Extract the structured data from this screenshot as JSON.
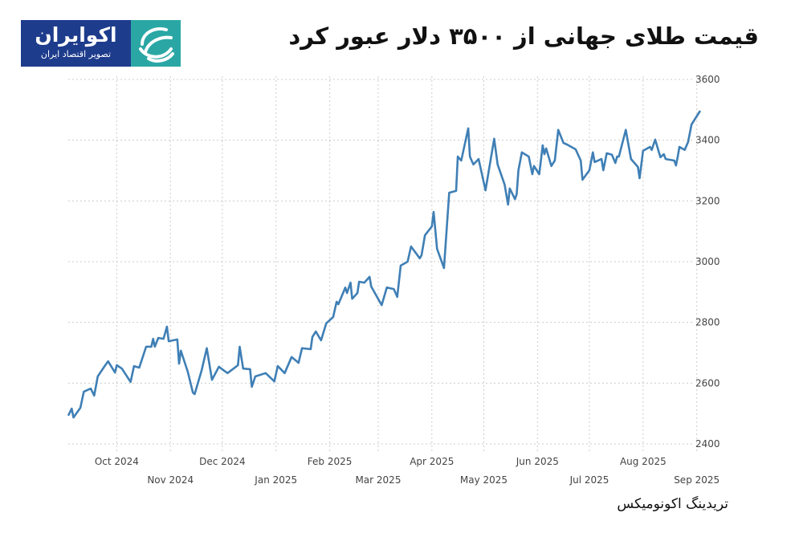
{
  "title": "قیمت طلای جهانی از ۳۵۰۰ دلار عبور کرد",
  "logo": {
    "name": "اکوایران",
    "subtitle": "تصویر اقتصاد ایران"
  },
  "source": "تریدینگ اکونومیکس",
  "colors": {
    "line": "#3f7fb5",
    "grid": "#cccccc",
    "logo_blue": "#1e3c8c",
    "logo_teal": "#2aa7a5"
  },
  "chart_data": {
    "type": "line",
    "title": "",
    "xlabel": "",
    "ylabel": "",
    "ylim": [
      2400,
      3600
    ],
    "xlim": [
      "2024-09-03",
      "2025-09-03"
    ],
    "grid": true,
    "y_axis_position": "right",
    "y_ticks": [
      "3600",
      "3400",
      "3200",
      "3000",
      "2800",
      "2600",
      "2400"
    ],
    "x_ticks": [
      {
        "label": "Oct 2024",
        "date": "2024-10-01"
      },
      {
        "label": "Nov 2024",
        "date": "2024-11-01"
      },
      {
        "label": "Dec 2024",
        "date": "2024-12-01"
      },
      {
        "label": "Jan 2025",
        "date": "2025-01-01"
      },
      {
        "label": "Feb 2025",
        "date": "2025-02-01"
      },
      {
        "label": "Mar 2025",
        "date": "2025-03-01"
      },
      {
        "label": "Apr 2025",
        "date": "2025-04-01"
      },
      {
        "label": "May 2025",
        "date": "2025-05-01"
      },
      {
        "label": "Jun 2025",
        "date": "2025-06-01"
      },
      {
        "label": "Jul 2025",
        "date": "2025-07-01"
      },
      {
        "label": "Aug 2025",
        "date": "2025-08-01"
      },
      {
        "label": "Sep 2025",
        "date": "2025-09-01"
      }
    ],
    "series": [
      {
        "x": [
          "2024-09-03",
          "2024-09-05",
          "2024-09-06",
          "2024-09-10",
          "2024-09-12",
          "2024-09-16",
          "2024-09-18",
          "2024-09-20",
          "2024-09-24",
          "2024-09-26",
          "2024-09-30",
          "2024-10-01",
          "2024-10-04",
          "2024-10-09",
          "2024-10-11",
          "2024-10-14",
          "2024-10-18",
          "2024-10-21",
          "2024-10-22",
          "2024-10-23",
          "2024-10-25",
          "2024-10-28",
          "2024-10-30",
          "2024-10-31",
          "2024-11-05",
          "2024-11-06",
          "2024-11-07",
          "2024-11-11",
          "2024-11-14",
          "2024-11-15",
          "2024-11-19",
          "2024-11-22",
          "2024-11-25",
          "2024-11-29",
          "2024-12-02",
          "2024-12-04",
          "2024-12-10",
          "2024-12-11",
          "2024-12-13",
          "2024-12-17",
          "2024-12-18",
          "2024-12-20",
          "2024-12-26",
          "2024-12-31",
          "2025-01-02",
          "2025-01-06",
          "2025-01-10",
          "2025-01-14",
          "2025-01-16",
          "2025-01-21",
          "2025-01-22",
          "2025-01-24",
          "2025-01-27",
          "2025-01-30",
          "2025-02-03",
          "2025-02-05",
          "2025-02-06",
          "2025-02-10",
          "2025-02-11",
          "2025-02-13",
          "2025-02-14",
          "2025-02-17",
          "2025-02-18",
          "2025-02-21",
          "2025-02-24",
          "2025-02-25",
          "2025-03-03",
          "2025-03-06",
          "2025-03-10",
          "2025-03-12",
          "2025-03-14",
          "2025-03-18",
          "2025-03-20",
          "2025-03-24",
          "2025-03-25",
          "2025-03-26",
          "2025-03-28",
          "2025-04-01",
          "2025-04-02",
          "2025-04-04",
          "2025-04-08",
          "2025-04-11",
          "2025-04-15",
          "2025-04-16",
          "2025-04-18",
          "2025-04-22",
          "2025-04-23",
          "2025-04-25",
          "2025-04-28",
          "2025-05-02",
          "2025-05-07",
          "2025-05-09",
          "2025-05-13",
          "2025-05-15",
          "2025-05-16",
          "2025-05-19",
          "2025-05-20",
          "2025-05-21",
          "2025-05-23",
          "2025-05-27",
          "2025-05-29",
          "2025-05-30",
          "2025-06-02",
          "2025-06-03",
          "2025-06-04",
          "2025-06-05",
          "2025-06-06",
          "2025-06-09",
          "2025-06-11",
          "2025-06-13",
          "2025-06-16",
          "2025-06-18",
          "2025-06-23",
          "2025-06-26",
          "2025-06-27",
          "2025-07-01",
          "2025-07-03",
          "2025-07-04",
          "2025-07-08",
          "2025-07-09",
          "2025-07-11",
          "2025-07-14",
          "2025-07-16",
          "2025-07-17",
          "2025-07-18",
          "2025-07-22",
          "2025-07-25",
          "2025-07-29",
          "2025-07-30",
          "2025-08-01",
          "2025-08-05",
          "2025-08-06",
          "2025-08-08",
          "2025-08-11",
          "2025-08-13",
          "2025-08-14",
          "2025-08-19",
          "2025-08-20",
          "2025-08-21",
          "2025-08-22",
          "2025-08-25",
          "2025-08-27",
          "2025-08-29",
          "2025-09-03"
        ],
        "values": [
          2493,
          2516,
          2487,
          2519,
          2572,
          2582,
          2559,
          2622,
          2656,
          2672,
          2635,
          2659,
          2648,
          2604,
          2656,
          2651,
          2720,
          2720,
          2746,
          2720,
          2749,
          2746,
          2786,
          2738,
          2744,
          2664,
          2707,
          2638,
          2569,
          2564,
          2641,
          2715,
          2611,
          2654,
          2641,
          2633,
          2659,
          2720,
          2648,
          2646,
          2588,
          2622,
          2633,
          2606,
          2656,
          2633,
          2686,
          2667,
          2715,
          2712,
          2752,
          2770,
          2741,
          2797,
          2818,
          2868,
          2860,
          2915,
          2897,
          2931,
          2878,
          2897,
          2934,
          2931,
          2950,
          2918,
          2857,
          2915,
          2910,
          2884,
          2987,
          3000,
          3050,
          3019,
          3011,
          3021,
          3087,
          3116,
          3164,
          3042,
          2979,
          3227,
          3233,
          3346,
          3333,
          3439,
          3346,
          3320,
          3338,
          3235,
          3405,
          3320,
          3254,
          3188,
          3241,
          3206,
          3222,
          3301,
          3360,
          3346,
          3288,
          3315,
          3288,
          3333,
          3383,
          3354,
          3373,
          3315,
          3333,
          3434,
          3391,
          3386,
          3370,
          3333,
          3270,
          3301,
          3360,
          3328,
          3338,
          3301,
          3357,
          3352,
          3325,
          3346,
          3346,
          3434,
          3338,
          3312,
          3275,
          3365,
          3378,
          3368,
          3402,
          3344,
          3354,
          3338,
          3333,
          3317,
          3346,
          3378,
          3368,
          3394,
          3452,
          3497
        ]
      }
    ]
  }
}
